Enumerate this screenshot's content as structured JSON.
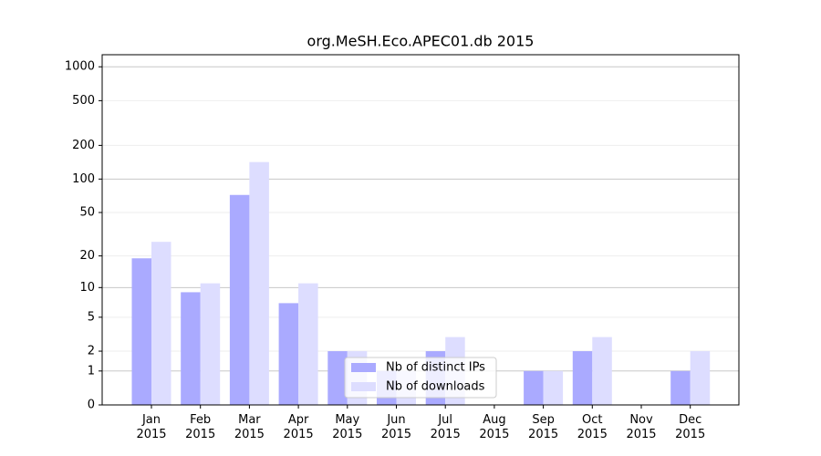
{
  "chart_data": {
    "type": "bar",
    "title": "org.MeSH.Eco.APEC01.db 2015",
    "categories": [
      "Jan\n2015",
      "Feb\n2015",
      "Mar\n2015",
      "Apr\n2015",
      "May\n2015",
      "Jun\n2015",
      "Jul\n2015",
      "Aug\n2015",
      "Sep\n2015",
      "Oct\n2015",
      "Nov\n2015",
      "Dec\n2015"
    ],
    "series": [
      {
        "name": "Nb of distinct IPs",
        "color": "#aaaaff",
        "values": [
          19,
          9,
          72,
          7,
          2,
          1,
          2,
          0,
          1,
          2,
          0,
          1
        ]
      },
      {
        "name": "Nb of downloads",
        "color": "#ddddff",
        "values": [
          27,
          11,
          142,
          11,
          2,
          1,
          3,
          0,
          1,
          3,
          0,
          2
        ]
      }
    ],
    "log_scale": true,
    "ylim": [
      0,
      1280
    ],
    "yticks": [
      0,
      1,
      2,
      5,
      10,
      20,
      50,
      100,
      200,
      500,
      1000
    ],
    "grid": true,
    "legend": "lower center"
  }
}
